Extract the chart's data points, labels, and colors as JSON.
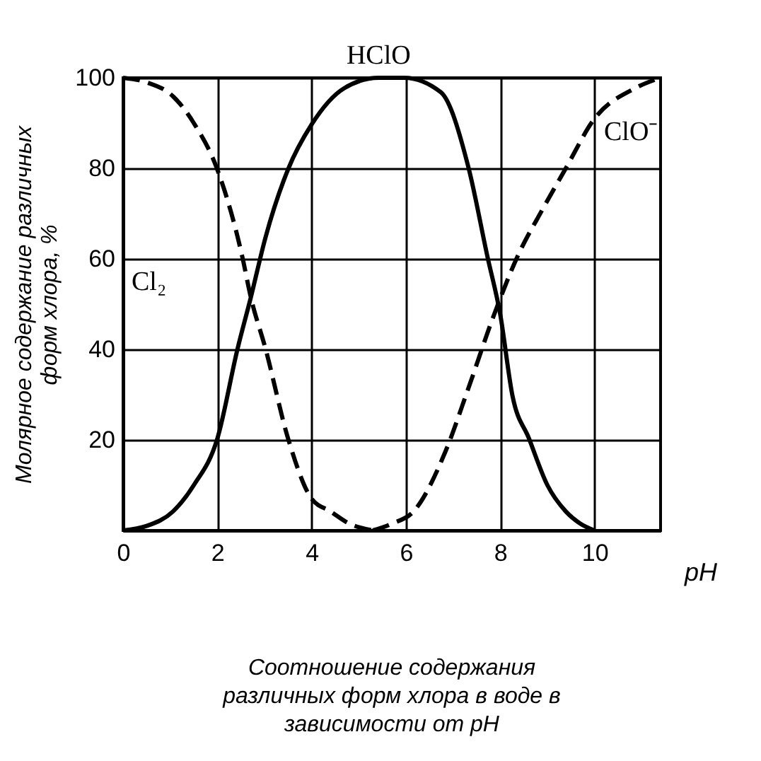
{
  "chart_data": {
    "type": "line",
    "title": "Соотношение содержания различных форм хлора в воде в зависимости от pH",
    "xlabel": "pH",
    "ylabel": "Молярное содержание различных форм хлора, %",
    "xlim": [
      0,
      11.4
    ],
    "ylim": [
      0,
      100
    ],
    "xticks": [
      0,
      2,
      4,
      6,
      8,
      10
    ],
    "yticks": [
      20,
      40,
      60,
      80,
      100
    ],
    "grid": true,
    "marker": "none",
    "series": [
      {
        "name": "Cl₂",
        "color": "#000000",
        "line_style": "dashed",
        "x": [
          0,
          0.5,
          1.06,
          1.5,
          1.99,
          2.53,
          2.71,
          3.02,
          3.5,
          4.0,
          4.4,
          4.8,
          5.3
        ],
        "values": [
          100,
          99,
          95.9,
          90,
          80,
          60.4,
          51.5,
          40.2,
          20.3,
          7,
          4.2,
          1.5,
          0
        ]
      },
      {
        "name": "HClO",
        "color": "#000000",
        "line_style": "solid",
        "x": [
          0,
          0.5,
          1.06,
          1.5,
          2.0,
          2.43,
          2.71,
          3.02,
          3.5,
          4.0,
          4.69,
          5.42,
          5.96,
          6.74,
          7.33,
          7.73,
          8.0,
          8.26,
          8.61,
          9.0,
          9.39,
          9.7,
          10
        ],
        "values": [
          0,
          1,
          4.2,
          10,
          20.3,
          40.2,
          51.5,
          64.7,
          79.8,
          89.7,
          97.7,
          100,
          100,
          96.8,
          80,
          60.4,
          47.7,
          29.7,
          20.3,
          10,
          4.2,
          1.5,
          0
        ]
      },
      {
        "name": "ClO⁻",
        "color": "#000000",
        "line_style": "dashed",
        "x": [
          5.3,
          5.7,
          6.16,
          6.84,
          7.33,
          7.87,
          8.36,
          8.9,
          9.39,
          9.98,
          10.86,
          11.4
        ],
        "values": [
          0,
          1.5,
          4.2,
          17.5,
          31.6,
          47.7,
          60.4,
          71,
          80,
          90.7,
          97.7,
          100
        ]
      }
    ],
    "legend": false
  }
}
